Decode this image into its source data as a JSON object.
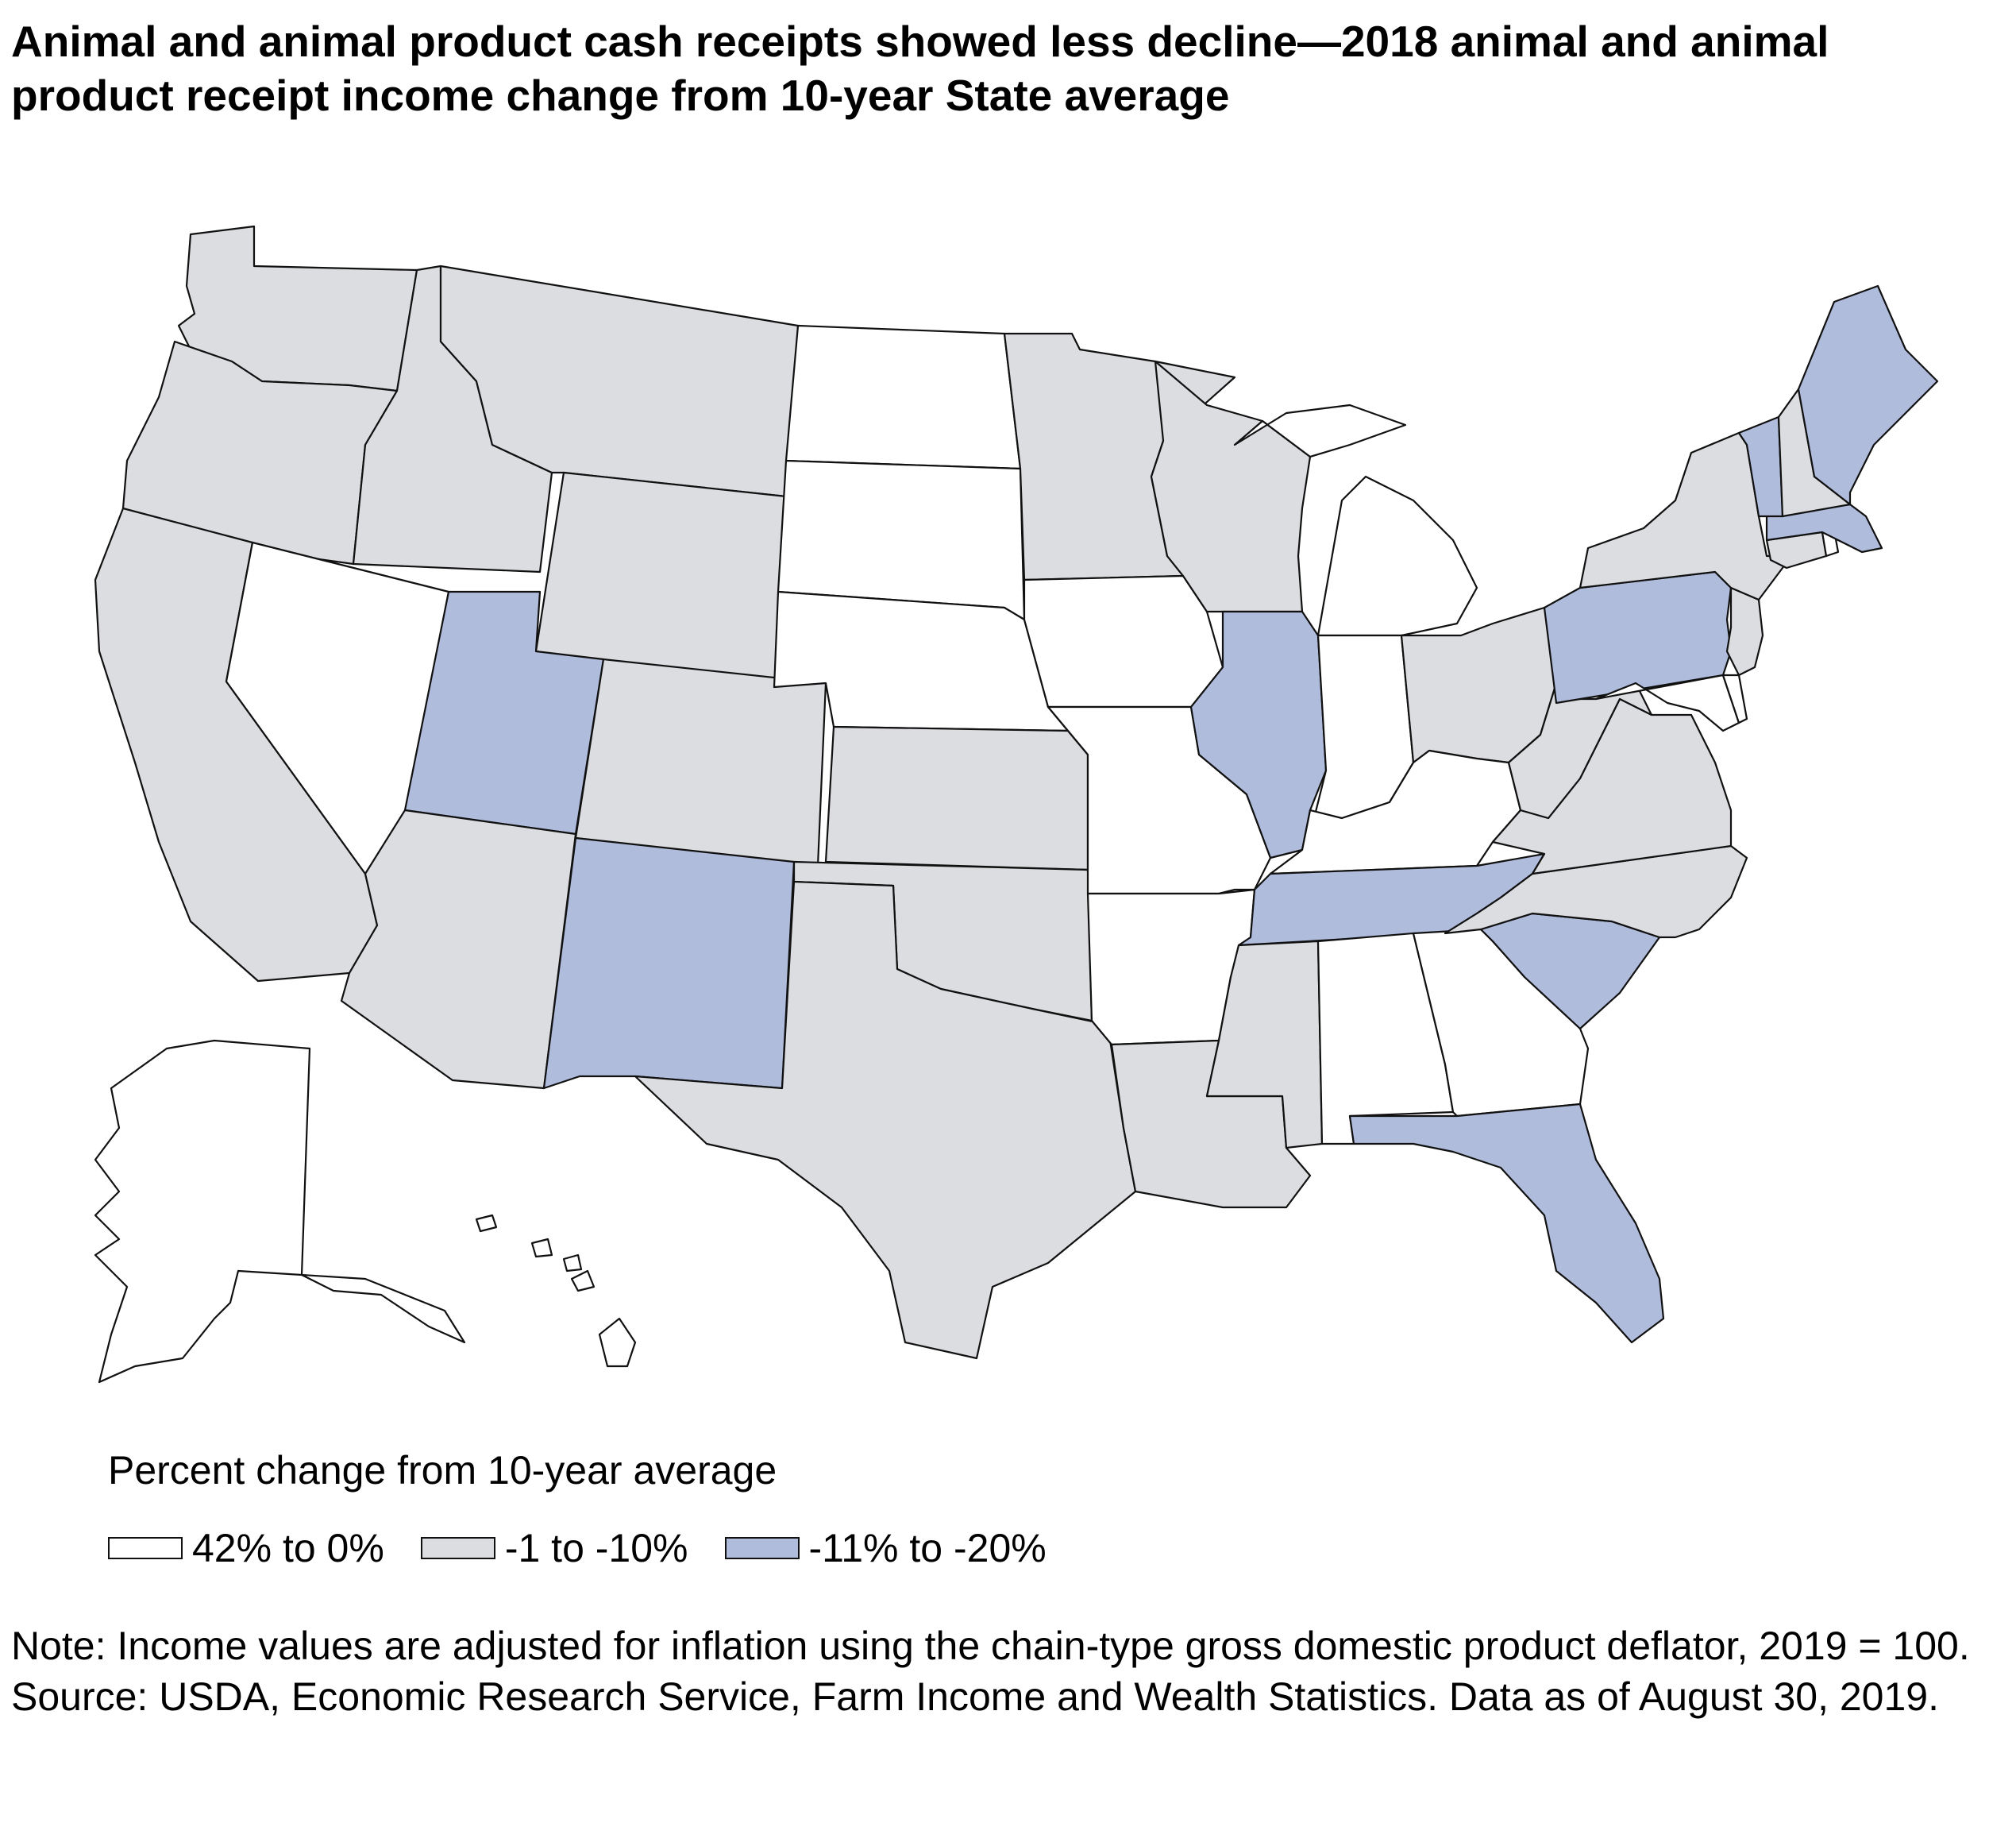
{
  "title": "Animal and animal product cash receipts showed less decline—2018 animal and animal product receipt income change from 10-year State average",
  "legend": {
    "title": "Percent change from 10-year average",
    "items": [
      {
        "label": "42% to 0%",
        "color": "#ffffff"
      },
      {
        "label": "-1 to -10%",
        "color": "#dcdde0"
      },
      {
        "label": "-11% to -20%",
        "color": "#b0bcdc"
      }
    ]
  },
  "notes": {
    "note": "Note: Income values are adjusted for inflation using the chain-type gross domestic product deflator, 2019 = 100.",
    "source": "Source: USDA, Economic Research Service, Farm Income and Wealth Statistics. Data as of August 30, 2019."
  },
  "map_data": {
    "type": "choropleth",
    "categories": [
      "42% to 0%",
      "-1 to -10%",
      "-11% to -20%"
    ],
    "states": {
      "WA": "-1 to -10%",
      "OR": "-1 to -10%",
      "CA": "-1 to -10%",
      "ID": "-1 to -10%",
      "NV": "42% to 0%",
      "MT": "-1 to -10%",
      "WY": "-1 to -10%",
      "UT": "-11% to -20%",
      "AZ": "-1 to -10%",
      "CO": "-1 to -10%",
      "NM": "-11% to -20%",
      "ND": "42% to 0%",
      "SD": "42% to 0%",
      "NE": "42% to 0%",
      "KS": "-1 to -10%",
      "OK": "-1 to -10%",
      "TX": "-1 to -10%",
      "MN": "-1 to -10%",
      "IA": "42% to 0%",
      "MO": "42% to 0%",
      "AR": "42% to 0%",
      "LA": "-1 to -10%",
      "WI": "-1 to -10%",
      "IL": "-11% to -20%",
      "MI": "42% to 0%",
      "IN": "42% to 0%",
      "OH": "-1 to -10%",
      "KY": "42% to 0%",
      "TN": "-11% to -20%",
      "MS": "-1 to -10%",
      "AL": "42% to 0%",
      "GA": "42% to 0%",
      "FL": "-11% to -20%",
      "SC": "-11% to -20%",
      "NC": "-1 to -10%",
      "VA": "-1 to -10%",
      "WV": "-1 to -10%",
      "MD": "42% to 0%",
      "DE": "42% to 0%",
      "PA": "-11% to -20%",
      "NJ": "-1 to -10%",
      "NY": "-1 to -10%",
      "CT": "-1 to -10%",
      "RI": "42% to 0%",
      "MA": "-11% to -20%",
      "VT": "-11% to -20%",
      "NH": "-1 to -10%",
      "ME": "-11% to -20%",
      "AK": "42% to 0%",
      "HI": "42% to 0%"
    }
  }
}
